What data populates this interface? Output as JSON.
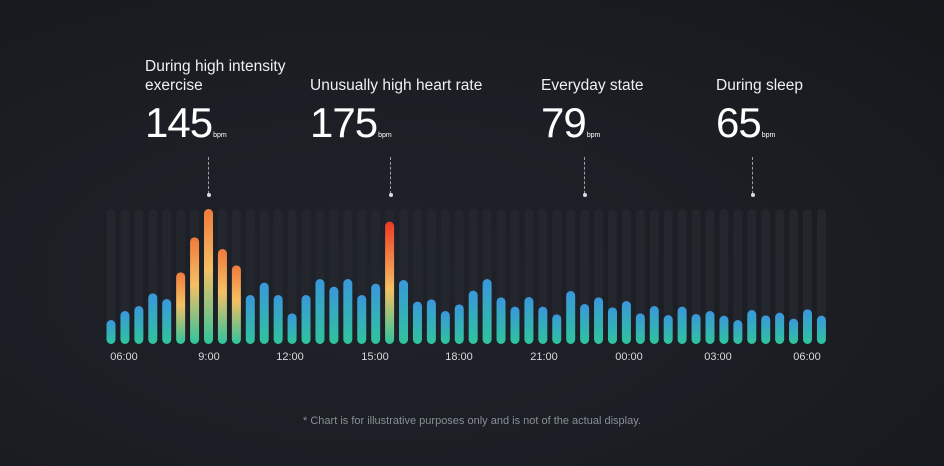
{
  "annotations": [
    {
      "label": "During high intensity exercise",
      "value": "145",
      "unit": "bpm"
    },
    {
      "label": "Unusually high heart rate",
      "value": "175",
      "unit": "bpm"
    },
    {
      "label": "Everyday state",
      "value": "79",
      "unit": "bpm"
    },
    {
      "label": "During sleep",
      "value": "65",
      "unit": "bpm"
    }
  ],
  "chart_data": {
    "type": "bar",
    "title": "",
    "xlabel": "",
    "ylabel": "",
    "x_tick_labels": [
      "06:00",
      "9:00",
      "12:00",
      "15:00",
      "18:00",
      "21:00",
      "00:00",
      "03:00",
      "06:00"
    ],
    "values": [
      72,
      99,
      114,
      152,
      135,
      215,
      320,
      405,
      285,
      236,
      147,
      184,
      147,
      92,
      147,
      195,
      172,
      195,
      147,
      181,
      367,
      192,
      127,
      134,
      99,
      119,
      160,
      195,
      140,
      112,
      141,
      112,
      89,
      159,
      120,
      140,
      110,
      129,
      92,
      114,
      87,
      112,
      90,
      99,
      85,
      72,
      102,
      86,
      94,
      76,
      104,
      85
    ],
    "ylim": [
      0,
      405
    ],
    "warm_bars": [
      5,
      6,
      7,
      8,
      9,
      20
    ],
    "colors": {
      "low": "#2fc49c",
      "normal_top": "#3a97dc",
      "warm_mid": "#f4c063",
      "warm_top": "#f07a3c",
      "peak_top": "#ec3a25",
      "track": "#23262c"
    }
  },
  "footnote": "* Chart is for illustrative purposes only and is not of the actual display."
}
